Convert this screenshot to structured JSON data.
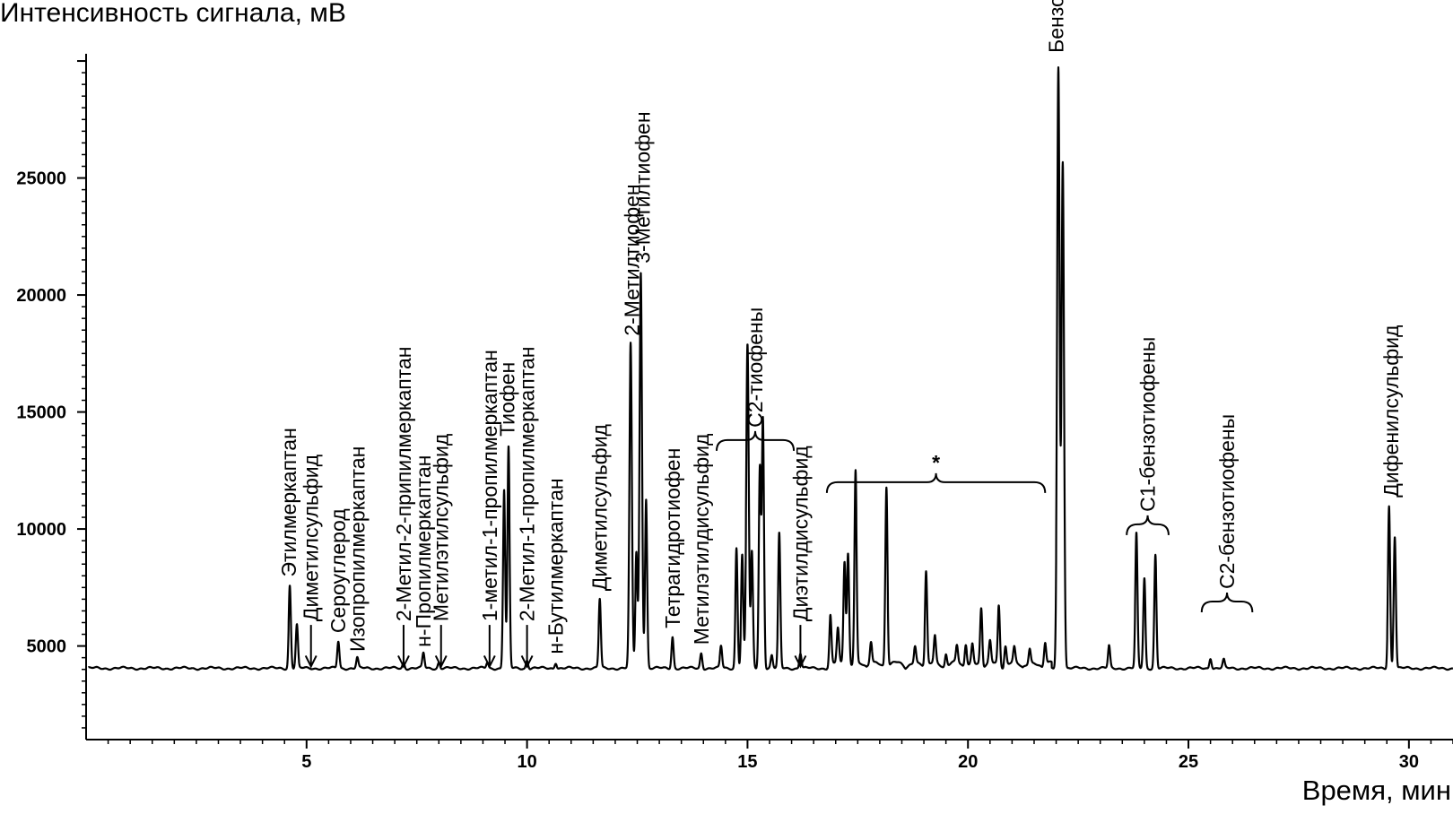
{
  "chart_data": {
    "type": "line",
    "ylabel": "Интенсивность сигнала, мВ",
    "xlabel": "Время, мин",
    "xlim": [
      0,
      31
    ],
    "ylim": [
      1000,
      30500
    ],
    "x_ticks": [
      5,
      10,
      15,
      20,
      25,
      30
    ],
    "x_tick_labels": [
      "5",
      "10",
      "15",
      "20",
      "25",
      "30"
    ],
    "y_ticks": [
      5000,
      10000,
      15000,
      20000,
      25000
    ],
    "y_tick_labels": [
      "5000",
      "10000",
      "15000",
      "20000",
      "25000"
    ],
    "grid": false,
    "legend": "none",
    "color": "#000000",
    "baseline": 4050,
    "peaks": [
      {
        "x": 4.62,
        "y": 7600
      },
      {
        "x": 4.78,
        "y": 5900
      },
      {
        "x": 5.72,
        "y": 5200
      },
      {
        "x": 6.15,
        "y": 4500
      },
      {
        "x": 7.2,
        "y": 4300
      },
      {
        "x": 7.65,
        "y": 4700
      },
      {
        "x": 8.0,
        "y": 4300
      },
      {
        "x": 9.1,
        "y": 4300
      },
      {
        "x": 9.48,
        "y": 11700
      },
      {
        "x": 9.58,
        "y": 13500
      },
      {
        "x": 10.0,
        "y": 4400
      },
      {
        "x": 10.65,
        "y": 4300
      },
      {
        "x": 11.65,
        "y": 7000
      },
      {
        "x": 12.35,
        "y": 17900
      },
      {
        "x": 12.48,
        "y": 9000
      },
      {
        "x": 12.58,
        "y": 21000
      },
      {
        "x": 12.7,
        "y": 11300
      },
      {
        "x": 13.3,
        "y": 5400
      },
      {
        "x": 13.95,
        "y": 4700
      },
      {
        "x": 14.4,
        "y": 5000
      },
      {
        "x": 14.75,
        "y": 9200
      },
      {
        "x": 14.88,
        "y": 8900
      },
      {
        "x": 15.0,
        "y": 17900
      },
      {
        "x": 15.1,
        "y": 9000
      },
      {
        "x": 15.28,
        "y": 12600
      },
      {
        "x": 15.35,
        "y": 14700
      },
      {
        "x": 15.55,
        "y": 4600
      },
      {
        "x": 15.72,
        "y": 9800
      },
      {
        "x": 16.2,
        "y": 4700
      },
      {
        "x": 16.88,
        "y": 6200
      },
      {
        "x": 17.05,
        "y": 5500
      },
      {
        "x": 17.2,
        "y": 8500
      },
      {
        "x": 17.28,
        "y": 8900
      },
      {
        "x": 17.45,
        "y": 12300
      },
      {
        "x": 17.8,
        "y": 5000
      },
      {
        "x": 18.15,
        "y": 11800
      },
      {
        "x": 18.8,
        "y": 4800
      },
      {
        "x": 19.05,
        "y": 8100
      },
      {
        "x": 19.25,
        "y": 5200
      },
      {
        "x": 19.5,
        "y": 4600
      },
      {
        "x": 19.75,
        "y": 4800
      },
      {
        "x": 19.95,
        "y": 5000
      },
      {
        "x": 20.1,
        "y": 4900
      },
      {
        "x": 20.3,
        "y": 6500
      },
      {
        "x": 20.5,
        "y": 5000
      },
      {
        "x": 20.7,
        "y": 6600
      },
      {
        "x": 20.85,
        "y": 4900
      },
      {
        "x": 21.05,
        "y": 4700
      },
      {
        "x": 21.4,
        "y": 4700
      },
      {
        "x": 21.75,
        "y": 5000
      },
      {
        "x": 22.05,
        "y": 29700
      },
      {
        "x": 22.15,
        "y": 25700
      },
      {
        "x": 23.2,
        "y": 5000
      },
      {
        "x": 23.82,
        "y": 9800
      },
      {
        "x": 24.0,
        "y": 7900
      },
      {
        "x": 24.25,
        "y": 8900
      },
      {
        "x": 25.5,
        "y": 4500
      },
      {
        "x": 25.8,
        "y": 4400
      },
      {
        "x": 29.55,
        "y": 11000
      },
      {
        "x": 29.68,
        "y": 9700
      }
    ],
    "annotations": [
      {
        "text": "Этилмеркаптан",
        "x": 4.6,
        "arrow": false,
        "text_y": 7800
      },
      {
        "text": "Диметилсульфид",
        "x": 5.1,
        "arrow": true,
        "text_y": 5900
      },
      {
        "text": "Сероуглерод",
        "x": 5.72,
        "arrow": false,
        "text_y": 5400
      },
      {
        "text": "Изопропилмеркаптан",
        "x": 6.15,
        "arrow": false,
        "text_y": 4600
      },
      {
        "text": "2-Метил-2-припилмеркаптан",
        "x": 7.2,
        "arrow": true,
        "text_y": 5900
      },
      {
        "text": "н-Пропилмеркаптан",
        "x": 7.65,
        "arrow": false,
        "text_y": 4800
      },
      {
        "text": "Метилэтилсульфид",
        "x": 8.05,
        "arrow": true,
        "text_y": 5900
      },
      {
        "text": "1-метил-1-пропилмеркаптан",
        "x": 9.15,
        "arrow": true,
        "text_y": 5900
      },
      {
        "text": "Тиофен",
        "x": 9.55,
        "arrow": false,
        "text_y": 13800
      },
      {
        "text": "2-Метил-1-пропилмеркаптан",
        "x": 10.0,
        "arrow": true,
        "text_y": 5900
      },
      {
        "text": "н-Бутилмеркаптан",
        "x": 10.65,
        "arrow": false,
        "text_y": 4500
      },
      {
        "text": "Диметилсульфид",
        "x": 11.65,
        "arrow": false,
        "text_y": 7200
      },
      {
        "text": "2-Метилтиофен",
        "x": 12.38,
        "arrow": false,
        "text_y": 18100
      },
      {
        "text": "3-Метилтиофен",
        "x": 12.62,
        "arrow": false,
        "text_y": 21200
      },
      {
        "text": "Тетрагидротиофен",
        "x": 13.3,
        "arrow": false,
        "text_y": 5600
      },
      {
        "text": "Метилэтилдисульфид",
        "x": 13.95,
        "arrow": false,
        "text_y": 4900
      },
      {
        "text": "Диэтилдисульфид",
        "x": 16.2,
        "arrow": true,
        "text_y": 5900
      },
      {
        "text": "Бензотиофен",
        "x": 22.0,
        "arrow": false,
        "text_y": 30200
      },
      {
        "text": "Дифенилсульфид",
        "x": 29.6,
        "arrow": false,
        "text_y": 11200
      }
    ],
    "brackets": [
      {
        "text": "C2-тиофены",
        "x1": 14.3,
        "x2": 16.05,
        "y": 13800
      },
      {
        "text": "*",
        "x1": 16.8,
        "x2": 21.75,
        "y": 12000
      },
      {
        "text": "C1-бензотиофены",
        "x1": 23.6,
        "x2": 24.55,
        "y": 10200
      },
      {
        "text": "C2-бензотиофены",
        "x1": 25.3,
        "x2": 26.45,
        "y": 6900
      }
    ]
  }
}
